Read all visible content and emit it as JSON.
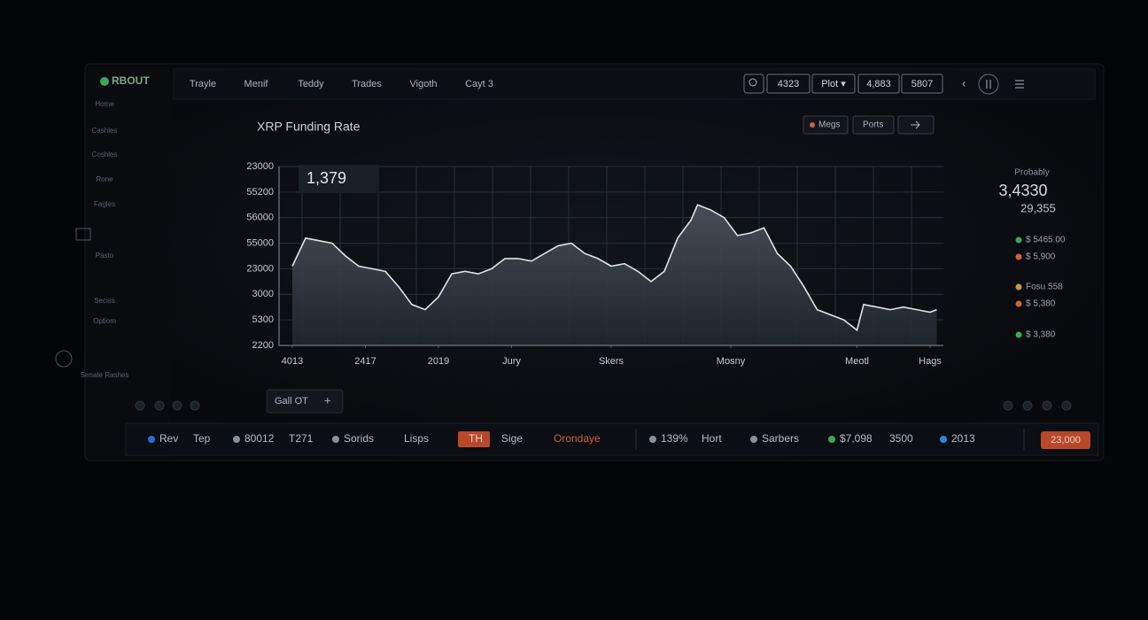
{
  "sidebar": {
    "brand": "RBOUT",
    "items": [
      "Home",
      "Cashies",
      "Coshles",
      "Rone",
      "Fagles",
      "Pasto",
      "Seciss",
      "Optiom",
      "Senate Rashes"
    ]
  },
  "nav": {
    "items": [
      "Trayle",
      "Menif",
      "Teddy",
      "Trades",
      "Vigoth",
      "Cayt 3"
    ]
  },
  "toolbar": {
    "items": [
      "4323",
      "Plot ▾",
      "4,883",
      "5807"
    ]
  },
  "chart_buttons": [
    "Megs",
    "Ports"
  ],
  "chart_data": {
    "type": "area",
    "title": "XRP Funding Rate",
    "annotation": "1,379",
    "color": "#dfe3e8",
    "fill": "#3b4049",
    "x": [
      2,
      4,
      6,
      8,
      10,
      12,
      14,
      16,
      18,
      20,
      22,
      24,
      26,
      28,
      30,
      32,
      34,
      36,
      38,
      40,
      42,
      44,
      46,
      48,
      50,
      52,
      54,
      56,
      58,
      60,
      62,
      63,
      65,
      67,
      69,
      71,
      73,
      75,
      77,
      79,
      81,
      83,
      85,
      87,
      88,
      90,
      92,
      94,
      96,
      98,
      99
    ],
    "values": [
      3.1,
      4.2,
      4.1,
      4.0,
      3.5,
      3.1,
      3.0,
      2.9,
      2.3,
      1.6,
      1.4,
      1.9,
      2.8,
      2.9,
      2.8,
      3.0,
      3.4,
      3.4,
      3.3,
      3.6,
      3.9,
      4.0,
      3.6,
      3.4,
      3.1,
      3.2,
      2.9,
      2.5,
      2.9,
      4.2,
      4.9,
      5.5,
      5.3,
      5.0,
      4.3,
      4.4,
      4.6,
      3.6,
      3.1,
      2.3,
      1.4,
      1.2,
      1.0,
      0.6,
      1.6,
      1.5,
      1.4,
      1.5,
      1.4,
      1.3,
      1.4
    ],
    "xlim": [
      0,
      100
    ],
    "xticks": [
      {
        "value": 2,
        "label": "4013"
      },
      {
        "value": 13,
        "label": "2417"
      },
      {
        "value": 24,
        "label": "2019"
      },
      {
        "value": 35,
        "label": "Jury"
      },
      {
        "value": 50,
        "label": "Skers"
      },
      {
        "value": 68,
        "label": "Mosny"
      },
      {
        "value": 87,
        "label": "Meotl"
      },
      {
        "value": 98,
        "label": "Hags"
      }
    ],
    "ylim": [
      0,
      7
    ],
    "yticks": [
      {
        "value": 7,
        "label": "23000"
      },
      {
        "value": 6,
        "label": "55200"
      },
      {
        "value": 5,
        "label": "56000"
      },
      {
        "value": 4,
        "label": "55000"
      },
      {
        "value": 3,
        "label": "23000"
      },
      {
        "value": 2,
        "label": "3000"
      },
      {
        "value": 1,
        "label": "5300"
      },
      {
        "value": 0,
        "label": "2200"
      }
    ],
    "grid": true
  },
  "chart_footer": {
    "button": "Gall OT",
    "plus": "+"
  },
  "right_panel": {
    "label": "Probably",
    "main": "3,4330",
    "sub": "29,355",
    "items": [
      "$ 5465.00",
      "$ 5,900",
      "Fosu 558",
      "$ 5,380",
      "$ 3,380"
    ]
  },
  "bottom_bar": {
    "items": [
      "Rev",
      "Tep",
      "80012",
      "T271",
      "Sorids",
      "Lisps",
      "TH",
      "Sige",
      "Orondaye",
      "139%",
      "Hort",
      "Sarbers",
      "$7,098",
      "3500",
      "2013"
    ],
    "total": "23,000"
  }
}
